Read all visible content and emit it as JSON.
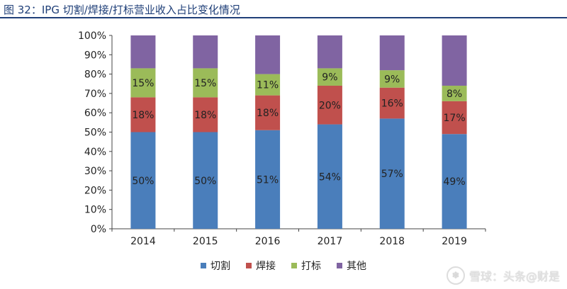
{
  "title": "图 32：IPG 切割/焊接/打标营业收入占比变化情况",
  "watermark": {
    "icon": "snowball-logo-icon",
    "text": "雪球：头条@财是"
  },
  "colors": {
    "title": "#1f3f78",
    "切割": "#4a7ebb",
    "焊接": "#c0504d",
    "打标": "#9bbb59",
    "其他": "#8064a2"
  },
  "chart_data": {
    "type": "bar",
    "stacked": true,
    "categories": [
      "2014",
      "2015",
      "2016",
      "2017",
      "2018",
      "2019"
    ],
    "series": [
      {
        "name": "切割",
        "color": "#4a7ebb",
        "values": [
          50,
          50,
          51,
          54,
          57,
          49
        ],
        "labels": [
          "50%",
          "50%",
          "51%",
          "54%",
          "57%",
          "49%"
        ]
      },
      {
        "name": "焊接",
        "color": "#c0504d",
        "values": [
          18,
          18,
          18,
          20,
          16,
          17
        ],
        "labels": [
          "18%",
          "18%",
          "18%",
          "20%",
          "16%",
          "17%"
        ]
      },
      {
        "name": "打标",
        "color": "#9bbb59",
        "values": [
          15,
          15,
          11,
          9,
          9,
          8
        ],
        "labels": [
          "15%",
          "15%",
          "11%",
          "9%",
          "9%",
          "8%"
        ]
      },
      {
        "name": "其他",
        "color": "#8064a2",
        "values": [
          17,
          17,
          20,
          17,
          18,
          26
        ],
        "labels": [
          "",
          "",
          "",
          "",
          "",
          ""
        ]
      }
    ],
    "ylim": [
      0,
      100
    ],
    "yticks": [
      "0%",
      "10%",
      "20%",
      "30%",
      "40%",
      "50%",
      "60%",
      "70%",
      "80%",
      "90%",
      "100%"
    ],
    "grid": false,
    "legend_position": "bottom"
  }
}
